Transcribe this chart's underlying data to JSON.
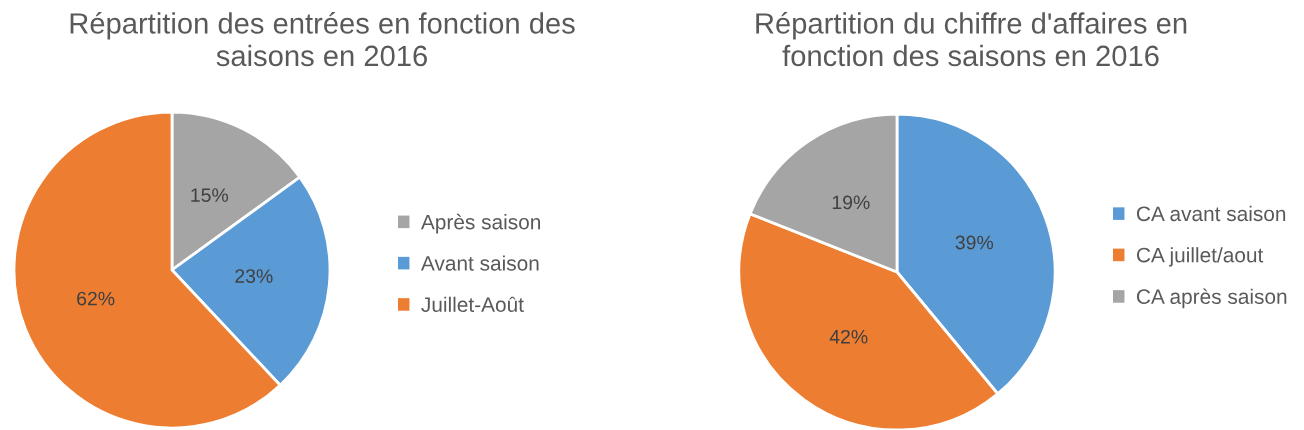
{
  "chart_data": [
    {
      "type": "pie",
      "title": "Répartition des entrées en fonction des saisons en 2016",
      "categories": [
        "Après saison",
        "Avant saison",
        "Juillet-Août"
      ],
      "values": [
        15,
        23,
        62
      ],
      "colors": [
        "#a5a5a5",
        "#5b9bd5",
        "#ed7d31"
      ],
      "value_labels": [
        "15%",
        "23%",
        "62%"
      ],
      "legend": "right"
    },
    {
      "type": "pie",
      "title": "Répartition du chiffre d'affaires en fonction des saisons en 2016",
      "categories": [
        "CA avant saison",
        "CA juillet/aout",
        "CA après saison"
      ],
      "values": [
        39,
        42,
        19
      ],
      "colors": [
        "#5b9bd5",
        "#ed7d31",
        "#a5a5a5"
      ],
      "value_labels": [
        "39%",
        "42%",
        "19%"
      ],
      "legend": "right"
    }
  ]
}
